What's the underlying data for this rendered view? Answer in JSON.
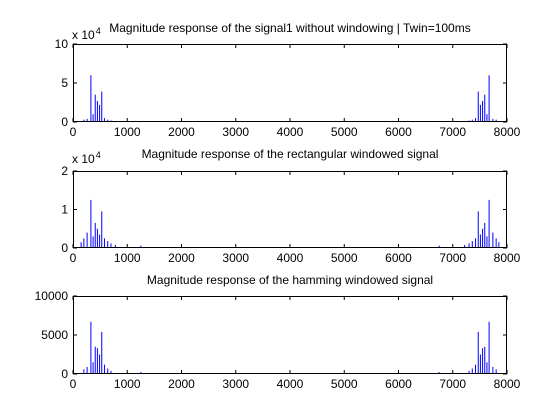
{
  "figure": {
    "background": "#ffffff",
    "line_color": "#0000ff"
  },
  "chart_data": [
    {
      "type": "bar",
      "title": "Magnitude response of the signal1 without windowing | Twin=100ms",
      "xlim": [
        0,
        8000
      ],
      "ylim": [
        0,
        100000
      ],
      "x_ticks": [
        "0",
        "1000",
        "2000",
        "3000",
        "4000",
        "5000",
        "6000",
        "7000",
        "8000"
      ],
      "y_ticks": [
        "0",
        "5",
        "10"
      ],
      "y_exponent": {
        "base": "x 10",
        "power": "4"
      },
      "peaks": [
        {
          "x": 200,
          "y": 3000
        },
        {
          "x": 260,
          "y": 4000
        },
        {
          "x": 330,
          "y": 60000
        },
        {
          "x": 370,
          "y": 10000
        },
        {
          "x": 410,
          "y": 35000
        },
        {
          "x": 450,
          "y": 27000
        },
        {
          "x": 490,
          "y": 22000
        },
        {
          "x": 530,
          "y": 39000
        },
        {
          "x": 580,
          "y": 5000
        },
        {
          "x": 640,
          "y": 3000
        },
        {
          "x": 700,
          "y": 2000
        },
        {
          "x": 7300,
          "y": 2000
        },
        {
          "x": 7360,
          "y": 3000
        },
        {
          "x": 7420,
          "y": 5000
        },
        {
          "x": 7470,
          "y": 39000
        },
        {
          "x": 7510,
          "y": 22000
        },
        {
          "x": 7550,
          "y": 27000
        },
        {
          "x": 7590,
          "y": 35000
        },
        {
          "x": 7630,
          "y": 10000
        },
        {
          "x": 7670,
          "y": 60000
        },
        {
          "x": 7740,
          "y": 4000
        },
        {
          "x": 7800,
          "y": 3000
        }
      ]
    },
    {
      "type": "bar",
      "title": "Magnitude response of the rectangular windowed signal",
      "xlim": [
        0,
        8000
      ],
      "ylim": [
        0,
        20000
      ],
      "x_ticks": [
        "0",
        "1000",
        "2000",
        "3000",
        "4000",
        "5000",
        "6000",
        "7000",
        "8000"
      ],
      "y_ticks": [
        "0",
        "1",
        "2"
      ],
      "y_exponent": {
        "base": "x 10",
        "power": "4"
      },
      "peaks": [
        {
          "x": 150,
          "y": 1500
        },
        {
          "x": 200,
          "y": 2500
        },
        {
          "x": 260,
          "y": 4000
        },
        {
          "x": 330,
          "y": 12500
        },
        {
          "x": 370,
          "y": 3000
        },
        {
          "x": 410,
          "y": 6500
        },
        {
          "x": 450,
          "y": 5000
        },
        {
          "x": 490,
          "y": 3500
        },
        {
          "x": 530,
          "y": 9500
        },
        {
          "x": 580,
          "y": 2500
        },
        {
          "x": 640,
          "y": 1800
        },
        {
          "x": 700,
          "y": 1200
        },
        {
          "x": 780,
          "y": 800
        },
        {
          "x": 1250,
          "y": 600
        },
        {
          "x": 6750,
          "y": 600
        },
        {
          "x": 7220,
          "y": 800
        },
        {
          "x": 7300,
          "y": 1200
        },
        {
          "x": 7360,
          "y": 1800
        },
        {
          "x": 7420,
          "y": 2500
        },
        {
          "x": 7470,
          "y": 9500
        },
        {
          "x": 7510,
          "y": 3500
        },
        {
          "x": 7550,
          "y": 5000
        },
        {
          "x": 7590,
          "y": 6500
        },
        {
          "x": 7630,
          "y": 3000
        },
        {
          "x": 7670,
          "y": 12500
        },
        {
          "x": 7740,
          "y": 4000
        },
        {
          "x": 7800,
          "y": 2500
        },
        {
          "x": 7850,
          "y": 1500
        }
      ]
    },
    {
      "type": "bar",
      "title": "Magnitude response of the hamming windowed signal",
      "xlim": [
        0,
        8000
      ],
      "ylim": [
        0,
        10000
      ],
      "x_ticks": [
        "0",
        "1000",
        "2000",
        "3000",
        "4000",
        "5000",
        "6000",
        "7000",
        "8000"
      ],
      "y_ticks": [
        "0",
        "5000",
        "10000"
      ],
      "peaks": [
        {
          "x": 200,
          "y": 600
        },
        {
          "x": 260,
          "y": 900
        },
        {
          "x": 330,
          "y": 6700
        },
        {
          "x": 370,
          "y": 1500
        },
        {
          "x": 410,
          "y": 3500
        },
        {
          "x": 450,
          "y": 3300
        },
        {
          "x": 490,
          "y": 2500
        },
        {
          "x": 530,
          "y": 5400
        },
        {
          "x": 580,
          "y": 1200
        },
        {
          "x": 640,
          "y": 700
        },
        {
          "x": 700,
          "y": 400
        },
        {
          "x": 1250,
          "y": 250
        },
        {
          "x": 6750,
          "y": 250
        },
        {
          "x": 7300,
          "y": 400
        },
        {
          "x": 7360,
          "y": 700
        },
        {
          "x": 7420,
          "y": 1200
        },
        {
          "x": 7470,
          "y": 5400
        },
        {
          "x": 7510,
          "y": 2500
        },
        {
          "x": 7550,
          "y": 3300
        },
        {
          "x": 7590,
          "y": 3500
        },
        {
          "x": 7630,
          "y": 1500
        },
        {
          "x": 7670,
          "y": 6700
        },
        {
          "x": 7740,
          "y": 900
        },
        {
          "x": 7800,
          "y": 600
        }
      ]
    }
  ]
}
